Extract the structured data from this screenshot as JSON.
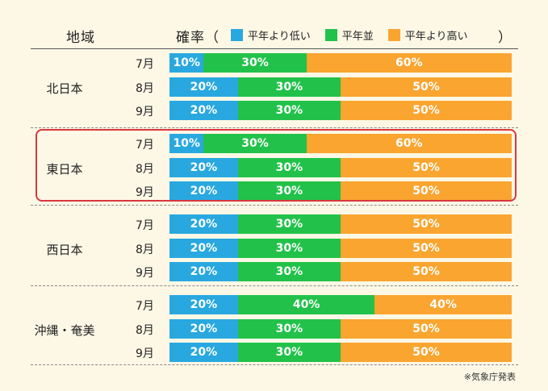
{
  "header": {
    "region_label": "地域",
    "prob_label": "確率（",
    "close_paren": "）"
  },
  "legend": [
    {
      "label": "平年より低い",
      "color": "#29a8e0"
    },
    {
      "label": "平年並",
      "color": "#22c24a"
    },
    {
      "label": "平年より高い",
      "color": "#f9a530"
    }
  ],
  "source_note": "※気象庁発表",
  "highlighted_region": "東日本",
  "chart_data": {
    "type": "bar",
    "orientation": "horizontal",
    "stacked": true,
    "percent_scale": [
      0,
      100
    ],
    "series_names": [
      "平年より低い",
      "平年並",
      "平年より高い"
    ],
    "colors": [
      "#29a8e0",
      "#22c24a",
      "#f9a530"
    ],
    "groups": [
      {
        "region": "北日本",
        "rows": [
          {
            "month": "7月",
            "values": [
              10,
              30,
              60
            ]
          },
          {
            "month": "8月",
            "values": [
              20,
              30,
              50
            ]
          },
          {
            "month": "9月",
            "values": [
              20,
              30,
              50
            ]
          }
        ]
      },
      {
        "region": "東日本",
        "rows": [
          {
            "month": "7月",
            "values": [
              10,
              30,
              60
            ]
          },
          {
            "month": "8月",
            "values": [
              20,
              30,
              50
            ]
          },
          {
            "month": "9月",
            "values": [
              20,
              30,
              50
            ]
          }
        ]
      },
      {
        "region": "西日本",
        "rows": [
          {
            "month": "7月",
            "values": [
              20,
              30,
              50
            ]
          },
          {
            "month": "8月",
            "values": [
              20,
              30,
              50
            ]
          },
          {
            "month": "9月",
            "values": [
              20,
              30,
              50
            ]
          }
        ]
      },
      {
        "region": "沖縄・奄美",
        "rows": [
          {
            "month": "7月",
            "values": [
              20,
              40,
              40
            ]
          },
          {
            "month": "8月",
            "values": [
              20,
              30,
              50
            ]
          },
          {
            "month": "9月",
            "values": [
              20,
              30,
              50
            ]
          }
        ]
      }
    ]
  }
}
